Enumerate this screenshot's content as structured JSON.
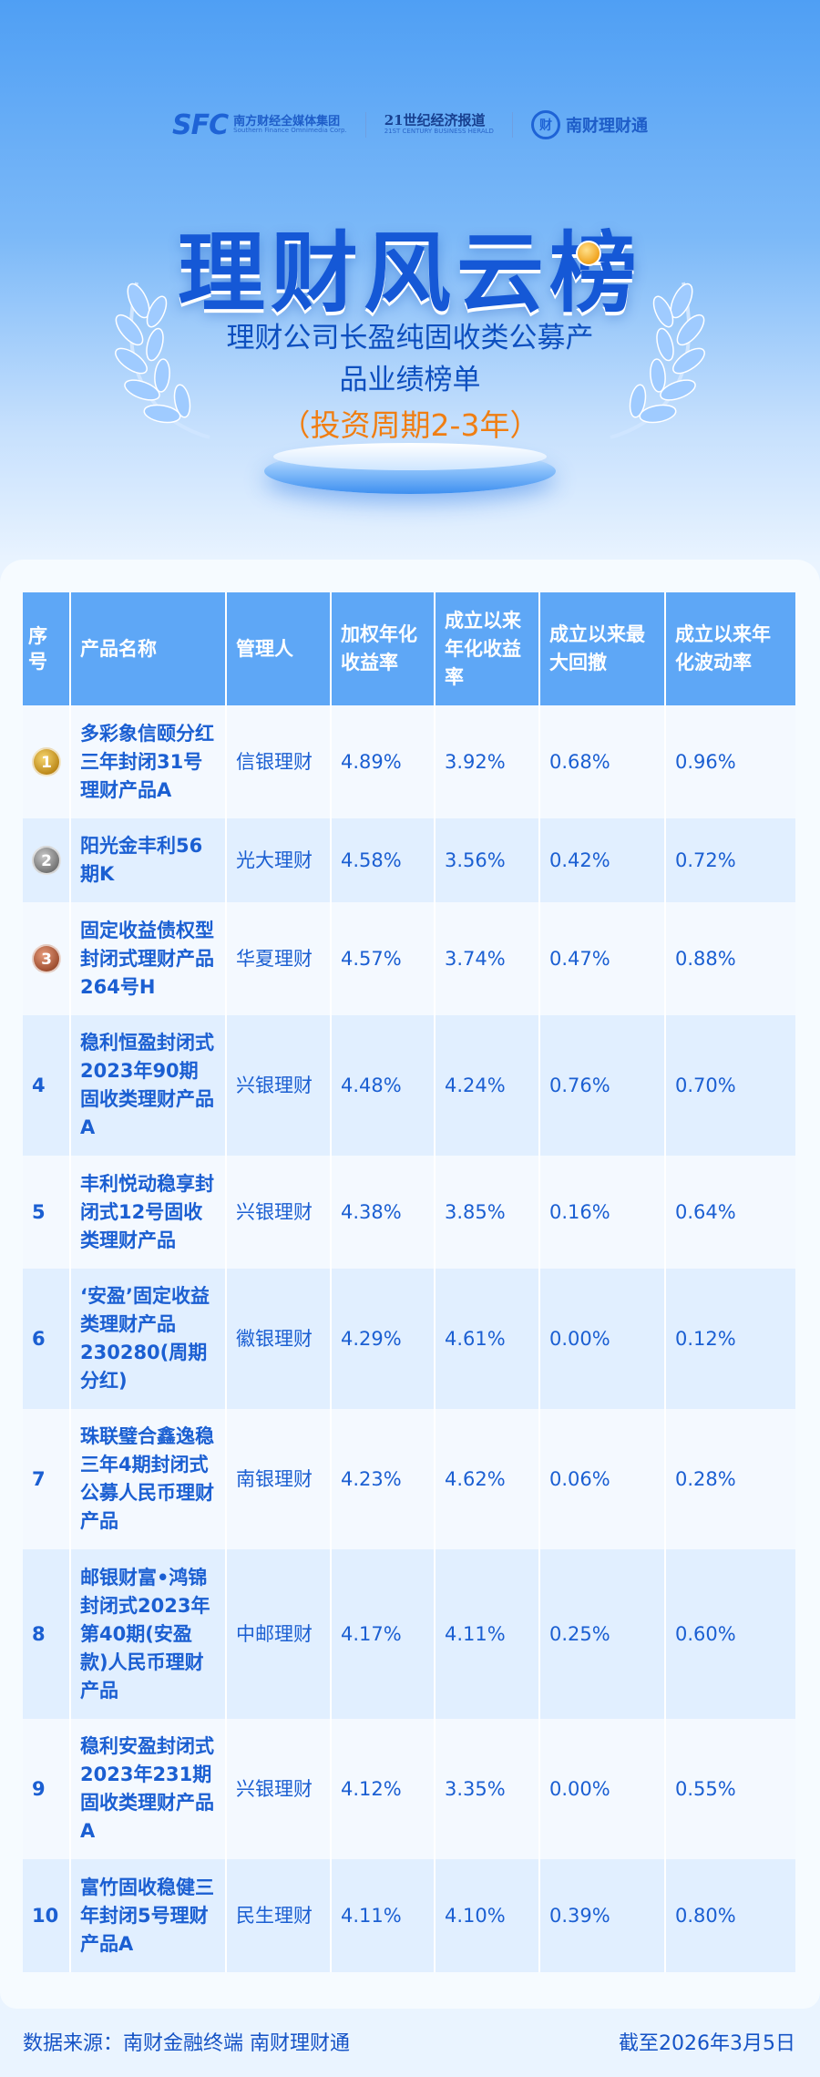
{
  "logos": {
    "sfc": "SFC",
    "sfc_cn": "南方财经全媒体集团",
    "sfc_en": "Southern Finance Omnimedia Corp.",
    "herald_cn": "21世纪经济报道",
    "herald_en": "21ST CENTURY BUSINESS HERALD",
    "nc_mark": "财",
    "nc_name": "南财理财通"
  },
  "header": {
    "title": "理财风云榜",
    "subtitle_line1": "理财公司长盈纯固收类公募产",
    "subtitle_line2": "品业绩榜单",
    "period": "（投资周期2-3年）"
  },
  "table": {
    "columns": [
      "序号",
      "产品名称",
      "管理人",
      "加权年化收益率",
      "成立以来年化收益率",
      "成立以来最大回撤",
      "成立以来年化波动率"
    ],
    "rows": [
      {
        "rank": "1",
        "medal": "gold",
        "name": "多彩象信颐分红三年封闭31号理财产品A",
        "manager": "信银理财",
        "weighted_return": "4.89%",
        "annual_return": "3.92%",
        "max_drawdown": "0.68%",
        "volatility": "0.96%"
      },
      {
        "rank": "2",
        "medal": "silver",
        "name": "阳光金丰利56期K",
        "manager": "光大理财",
        "weighted_return": "4.58%",
        "annual_return": "3.56%",
        "max_drawdown": "0.42%",
        "volatility": "0.72%"
      },
      {
        "rank": "3",
        "medal": "bronze",
        "name": "固定收益债权型封闭式理财产品264号H",
        "manager": "华夏理财",
        "weighted_return": "4.57%",
        "annual_return": "3.74%",
        "max_drawdown": "0.47%",
        "volatility": "0.88%"
      },
      {
        "rank": "4",
        "medal": "",
        "name": "稳利恒盈封闭式2023年90期固收类理财产品A",
        "manager": "兴银理财",
        "weighted_return": "4.48%",
        "annual_return": "4.24%",
        "max_drawdown": "0.76%",
        "volatility": "0.70%"
      },
      {
        "rank": "5",
        "medal": "",
        "name": "丰利悦动稳享封闭式12号固收类理财产品",
        "manager": "兴银理财",
        "weighted_return": "4.38%",
        "annual_return": "3.85%",
        "max_drawdown": "0.16%",
        "volatility": "0.64%"
      },
      {
        "rank": "6",
        "medal": "",
        "name": "‘安盈’固定收益类理财产品230280(周期分红)",
        "manager": "徽银理财",
        "weighted_return": "4.29%",
        "annual_return": "4.61%",
        "max_drawdown": "0.00%",
        "volatility": "0.12%"
      },
      {
        "rank": "7",
        "medal": "",
        "name": "珠联璧合鑫逸稳三年4期封闭式公募人民币理财产品",
        "manager": "南银理财",
        "weighted_return": "4.23%",
        "annual_return": "4.62%",
        "max_drawdown": "0.06%",
        "volatility": "0.28%"
      },
      {
        "rank": "8",
        "medal": "",
        "name": "邮银财富•鸿锦封闭式2023年第40期(安盈款)人民币理财产品",
        "manager": "中邮理财",
        "weighted_return": "4.17%",
        "annual_return": "4.11%",
        "max_drawdown": "0.25%",
        "volatility": "0.60%"
      },
      {
        "rank": "9",
        "medal": "",
        "name": "稳利安盈封闭式2023年231期固收类理财产品A",
        "manager": "兴银理财",
        "weighted_return": "4.12%",
        "annual_return": "3.35%",
        "max_drawdown": "0.00%",
        "volatility": "0.55%"
      },
      {
        "rank": "10",
        "medal": "",
        "name": "富竹固收稳健三年封闭5号理财产品A",
        "manager": "民生理财",
        "weighted_return": "4.11%",
        "annual_return": "4.10%",
        "max_drawdown": "0.39%",
        "volatility": "0.80%"
      }
    ]
  },
  "footer": {
    "source": "数据来源：南财金融终端 南财理财通",
    "date": "截至2026年3月5日"
  },
  "colors": {
    "accent": "#1558d6",
    "header_row": "#5ea7f6",
    "period": "#f07e12"
  }
}
